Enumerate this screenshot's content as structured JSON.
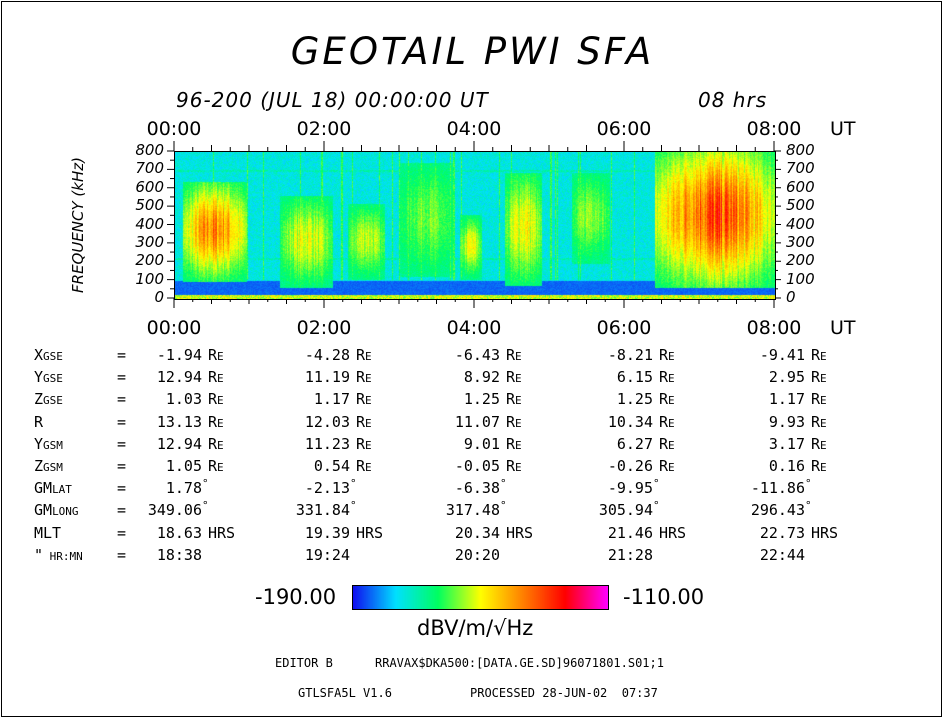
{
  "title": "GEOTAIL  PWI  SFA",
  "subtitle_left": "96-200 (JUL 18) 00:00:00 UT",
  "subtitle_right": "08 hrs",
  "time_ticks": [
    "00:00",
    "02:00",
    "04:00",
    "06:00",
    "08:00"
  ],
  "time_unit": "UT",
  "y_axis_label": "FREQUENCY (kHz)",
  "y_ticks": [
    "800",
    "700",
    "600",
    "500",
    "400",
    "300",
    "200",
    "100",
    "0"
  ],
  "orbit": {
    "rows": [
      {
        "label": "X",
        "sub": "GSE",
        "eq": "=",
        "vals": [
          "-1.94",
          "-4.28",
          "-6.43",
          "-8.21",
          "-9.41"
        ],
        "unit": "R",
        "usub": "E"
      },
      {
        "label": "Y",
        "sub": "GSE",
        "eq": "=",
        "vals": [
          "12.94",
          "11.19",
          "8.92",
          "6.15",
          "2.95"
        ],
        "unit": "R",
        "usub": "E"
      },
      {
        "label": "Z",
        "sub": "GSE",
        "eq": "=",
        "vals": [
          "1.03",
          "1.17",
          "1.25",
          "1.25",
          "1.17"
        ],
        "unit": "R",
        "usub": "E"
      },
      {
        "label": "R",
        "sub": "",
        "eq": "=",
        "vals": [
          "13.13",
          "12.03",
          "11.07",
          "10.34",
          "9.93"
        ],
        "unit": "R",
        "usub": "E"
      },
      {
        "label": "Y",
        "sub": "GSM",
        "eq": "=",
        "vals": [
          "12.94",
          "11.23",
          "9.01",
          "6.27",
          "3.17"
        ],
        "unit": "R",
        "usub": "E"
      },
      {
        "label": "Z",
        "sub": "GSM",
        "eq": "=",
        "vals": [
          "1.05",
          "0.54",
          "-0.05",
          "-0.26",
          "0.16"
        ],
        "unit": "R",
        "usub": "E"
      },
      {
        "label": "GM",
        "sub": "LAT",
        "eq": "=",
        "vals": [
          "1.78",
          "-2.13",
          "-6.38",
          "-9.95",
          "-11.86"
        ],
        "unit": "°",
        "usub": ""
      },
      {
        "label": "GM",
        "sub": "LONG",
        "eq": "=",
        "vals": [
          "349.06",
          "331.84",
          "317.48",
          "305.94",
          "296.43"
        ],
        "unit": "°",
        "usub": ""
      },
      {
        "label": "MLT",
        "sub": "",
        "eq": "=",
        "vals": [
          "18.63",
          "19.39",
          "20.34",
          "21.46",
          "22.73"
        ],
        "unit": "HRS",
        "usub": ""
      },
      {
        "label": "\"",
        "sub": " HR:MN",
        "eq": "=",
        "vals": [
          "18:38",
          "19:24",
          "20:20",
          "21:28",
          "22:44"
        ],
        "unit": "",
        "usub": ""
      }
    ]
  },
  "colorbar": {
    "min_label": "-190.00",
    "max_label": "-110.00",
    "unit_label": "dBV/m/√Hz"
  },
  "footer": {
    "line1_left": "EDITOR B",
    "line1_right": "RRAVAX$DKA500:[DATA.GE.SD]96071801.S01;1",
    "line2_left": "GTLSFA5L V1.6",
    "line2_right": "PROCESSED 28-JUN-02  07:37"
  },
  "chart_data": {
    "type": "heatmap",
    "title": "GEOTAIL  PWI  SFA",
    "xlabel": "UT",
    "ylabel": "FREQUENCY (kHz)",
    "xlim": [
      0,
      8
    ],
    "ylim": [
      0,
      800
    ],
    "x_tick_labels": [
      "00:00",
      "02:00",
      "04:00",
      "06:00",
      "08:00"
    ],
    "y_tick_values": [
      0,
      100,
      200,
      300,
      400,
      500,
      600,
      700,
      800
    ],
    "colorscale_range": [
      -190.0,
      -110.0
    ],
    "colorscale": [
      "#1010f0",
      "#00e0ff",
      "#00ff60",
      "#ffff00",
      "#ff8000",
      "#ff0000",
      "#ff00ff"
    ],
    "bursts": [
      {
        "t0": 0.1,
        "t1": 0.95,
        "f0": 150,
        "f1": 600,
        "peak": -135
      },
      {
        "t0": 1.4,
        "t1": 2.1,
        "f0": 120,
        "f1": 520,
        "peak": -150
      },
      {
        "t0": 2.3,
        "t1": 2.8,
        "f0": 160,
        "f1": 480,
        "peak": -152
      },
      {
        "t0": 3.0,
        "t1": 3.7,
        "f0": 180,
        "f1": 700,
        "peak": -158
      },
      {
        "t0": 3.8,
        "t1": 4.1,
        "f0": 160,
        "f1": 420,
        "peak": -150
      },
      {
        "t0": 4.4,
        "t1": 4.9,
        "f0": 130,
        "f1": 650,
        "peak": -148
      },
      {
        "t0": 5.3,
        "t1": 5.8,
        "f0": 250,
        "f1": 650,
        "peak": -155
      },
      {
        "t0": 6.4,
        "t1": 8.0,
        "f0": 120,
        "f1": 800,
        "peak": -128
      }
    ]
  }
}
